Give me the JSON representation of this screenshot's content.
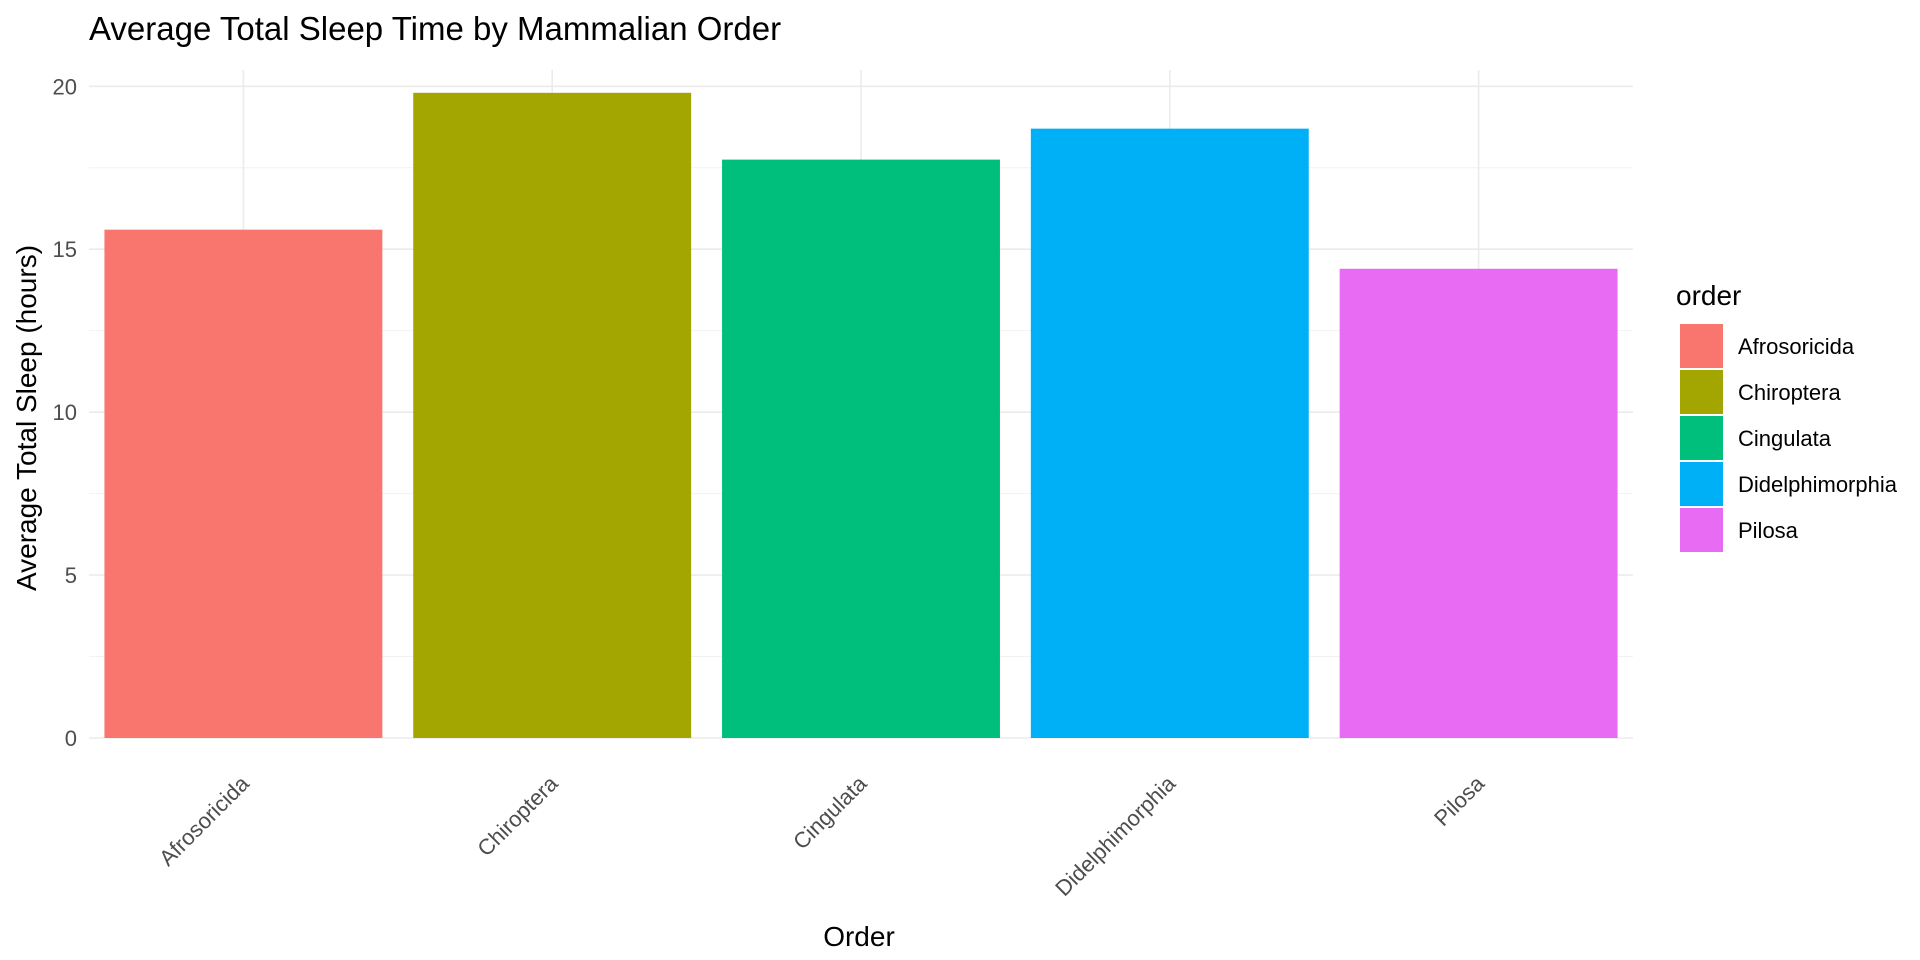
{
  "chart_data": {
    "type": "bar",
    "title": "Average Total Sleep Time by Mammalian Order",
    "xlabel": "Order",
    "ylabel": "Average Total Sleep (hours)",
    "categories": [
      "Afrosoricida",
      "Chiroptera",
      "Cingulata",
      "Didelphimorphia",
      "Pilosa"
    ],
    "values": [
      15.6,
      19.8,
      17.75,
      18.7,
      14.4
    ],
    "colors": [
      "#F8766D",
      "#A3A500",
      "#00BF7D",
      "#00B0F6",
      "#E76BF3"
    ],
    "ylim": [
      0,
      20.5
    ],
    "yticks": [
      "0",
      "5",
      "10",
      "15",
      "20"
    ],
    "ytick_values": [
      0,
      5,
      10,
      15,
      20
    ],
    "grid": true,
    "legend": {
      "title": "order",
      "placement": "right",
      "entries": [
        "Afrosoricida",
        "Chiroptera",
        "Cingulata",
        "Didelphimorphia",
        "Pilosa"
      ]
    }
  }
}
